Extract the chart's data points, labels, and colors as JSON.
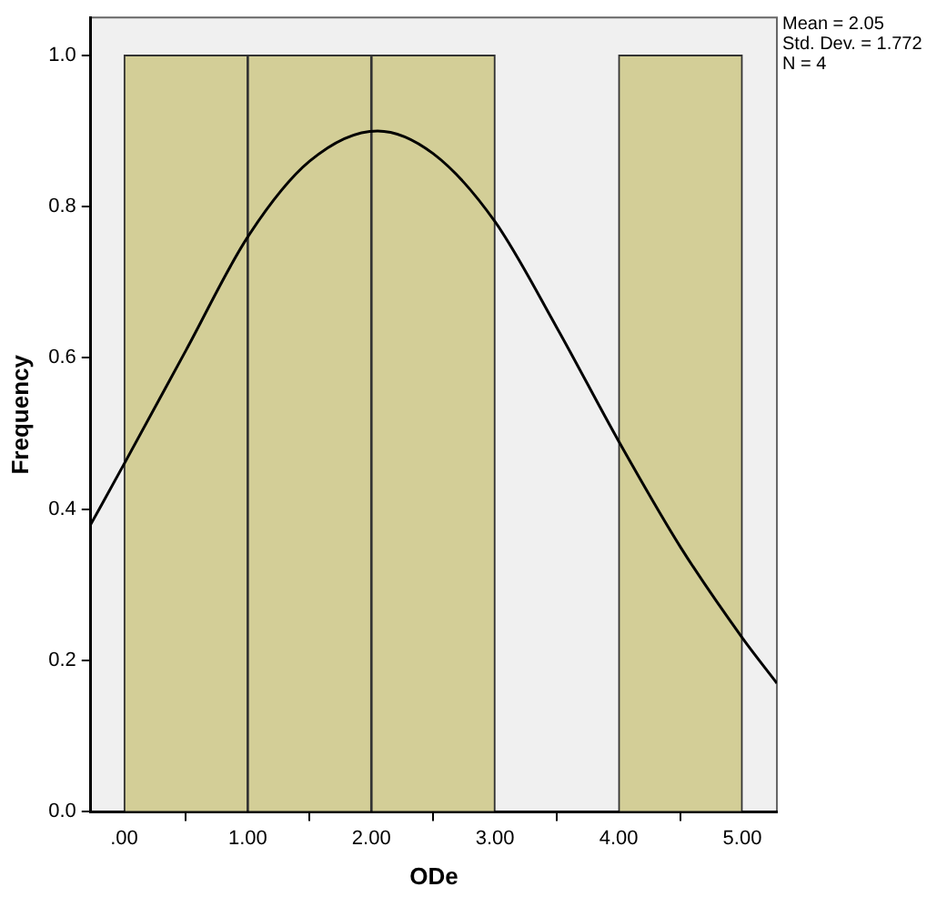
{
  "chart_data": {
    "type": "histogram",
    "xlabel": "ODe",
    "ylabel": "Frequency",
    "bins": [
      0,
      1,
      2,
      3,
      4,
      5
    ],
    "values": [
      1,
      1,
      1,
      0,
      1
    ],
    "color": "#d3ce97",
    "series": [
      {
        "type": "line",
        "color": "#000000",
        "x": [
          -0.27,
          0,
          0.5,
          1,
          1.5,
          2.05,
          2.5,
          3,
          3.5,
          4,
          4.5,
          5,
          5.28
        ],
        "values": [
          0.38,
          0.46,
          0.61,
          0.76,
          0.86,
          0.9,
          0.87,
          0.78,
          0.64,
          0.49,
          0.35,
          0.23,
          0.17
        ]
      }
    ],
    "xlim": [
      -0.27,
      5.28
    ],
    "xticks": [
      {
        "value": 0,
        "label": ".00"
      },
      {
        "value": 1,
        "label": "1.00"
      },
      {
        "value": 2,
        "label": "2.00"
      },
      {
        "value": 3,
        "label": "3.00"
      },
      {
        "value": 4,
        "label": "4.00"
      },
      {
        "value": 5,
        "label": "5.00"
      }
    ],
    "ylim": [
      0,
      1.05
    ],
    "yticks": [
      {
        "value": 0,
        "label": "0.0"
      },
      {
        "value": 0.2,
        "label": "0.2"
      },
      {
        "value": 0.4,
        "label": "0.4"
      },
      {
        "value": 0.6,
        "label": "0.6"
      },
      {
        "value": 0.8,
        "label": "0.8"
      },
      {
        "value": 1,
        "label": "1.0"
      }
    ],
    "grid": false,
    "legend": false,
    "marker": "none",
    "line_style": "solid",
    "annotations": [
      "Mean = 2.05",
      "Std. Dev. = 1.772",
      "N = 4"
    ]
  }
}
